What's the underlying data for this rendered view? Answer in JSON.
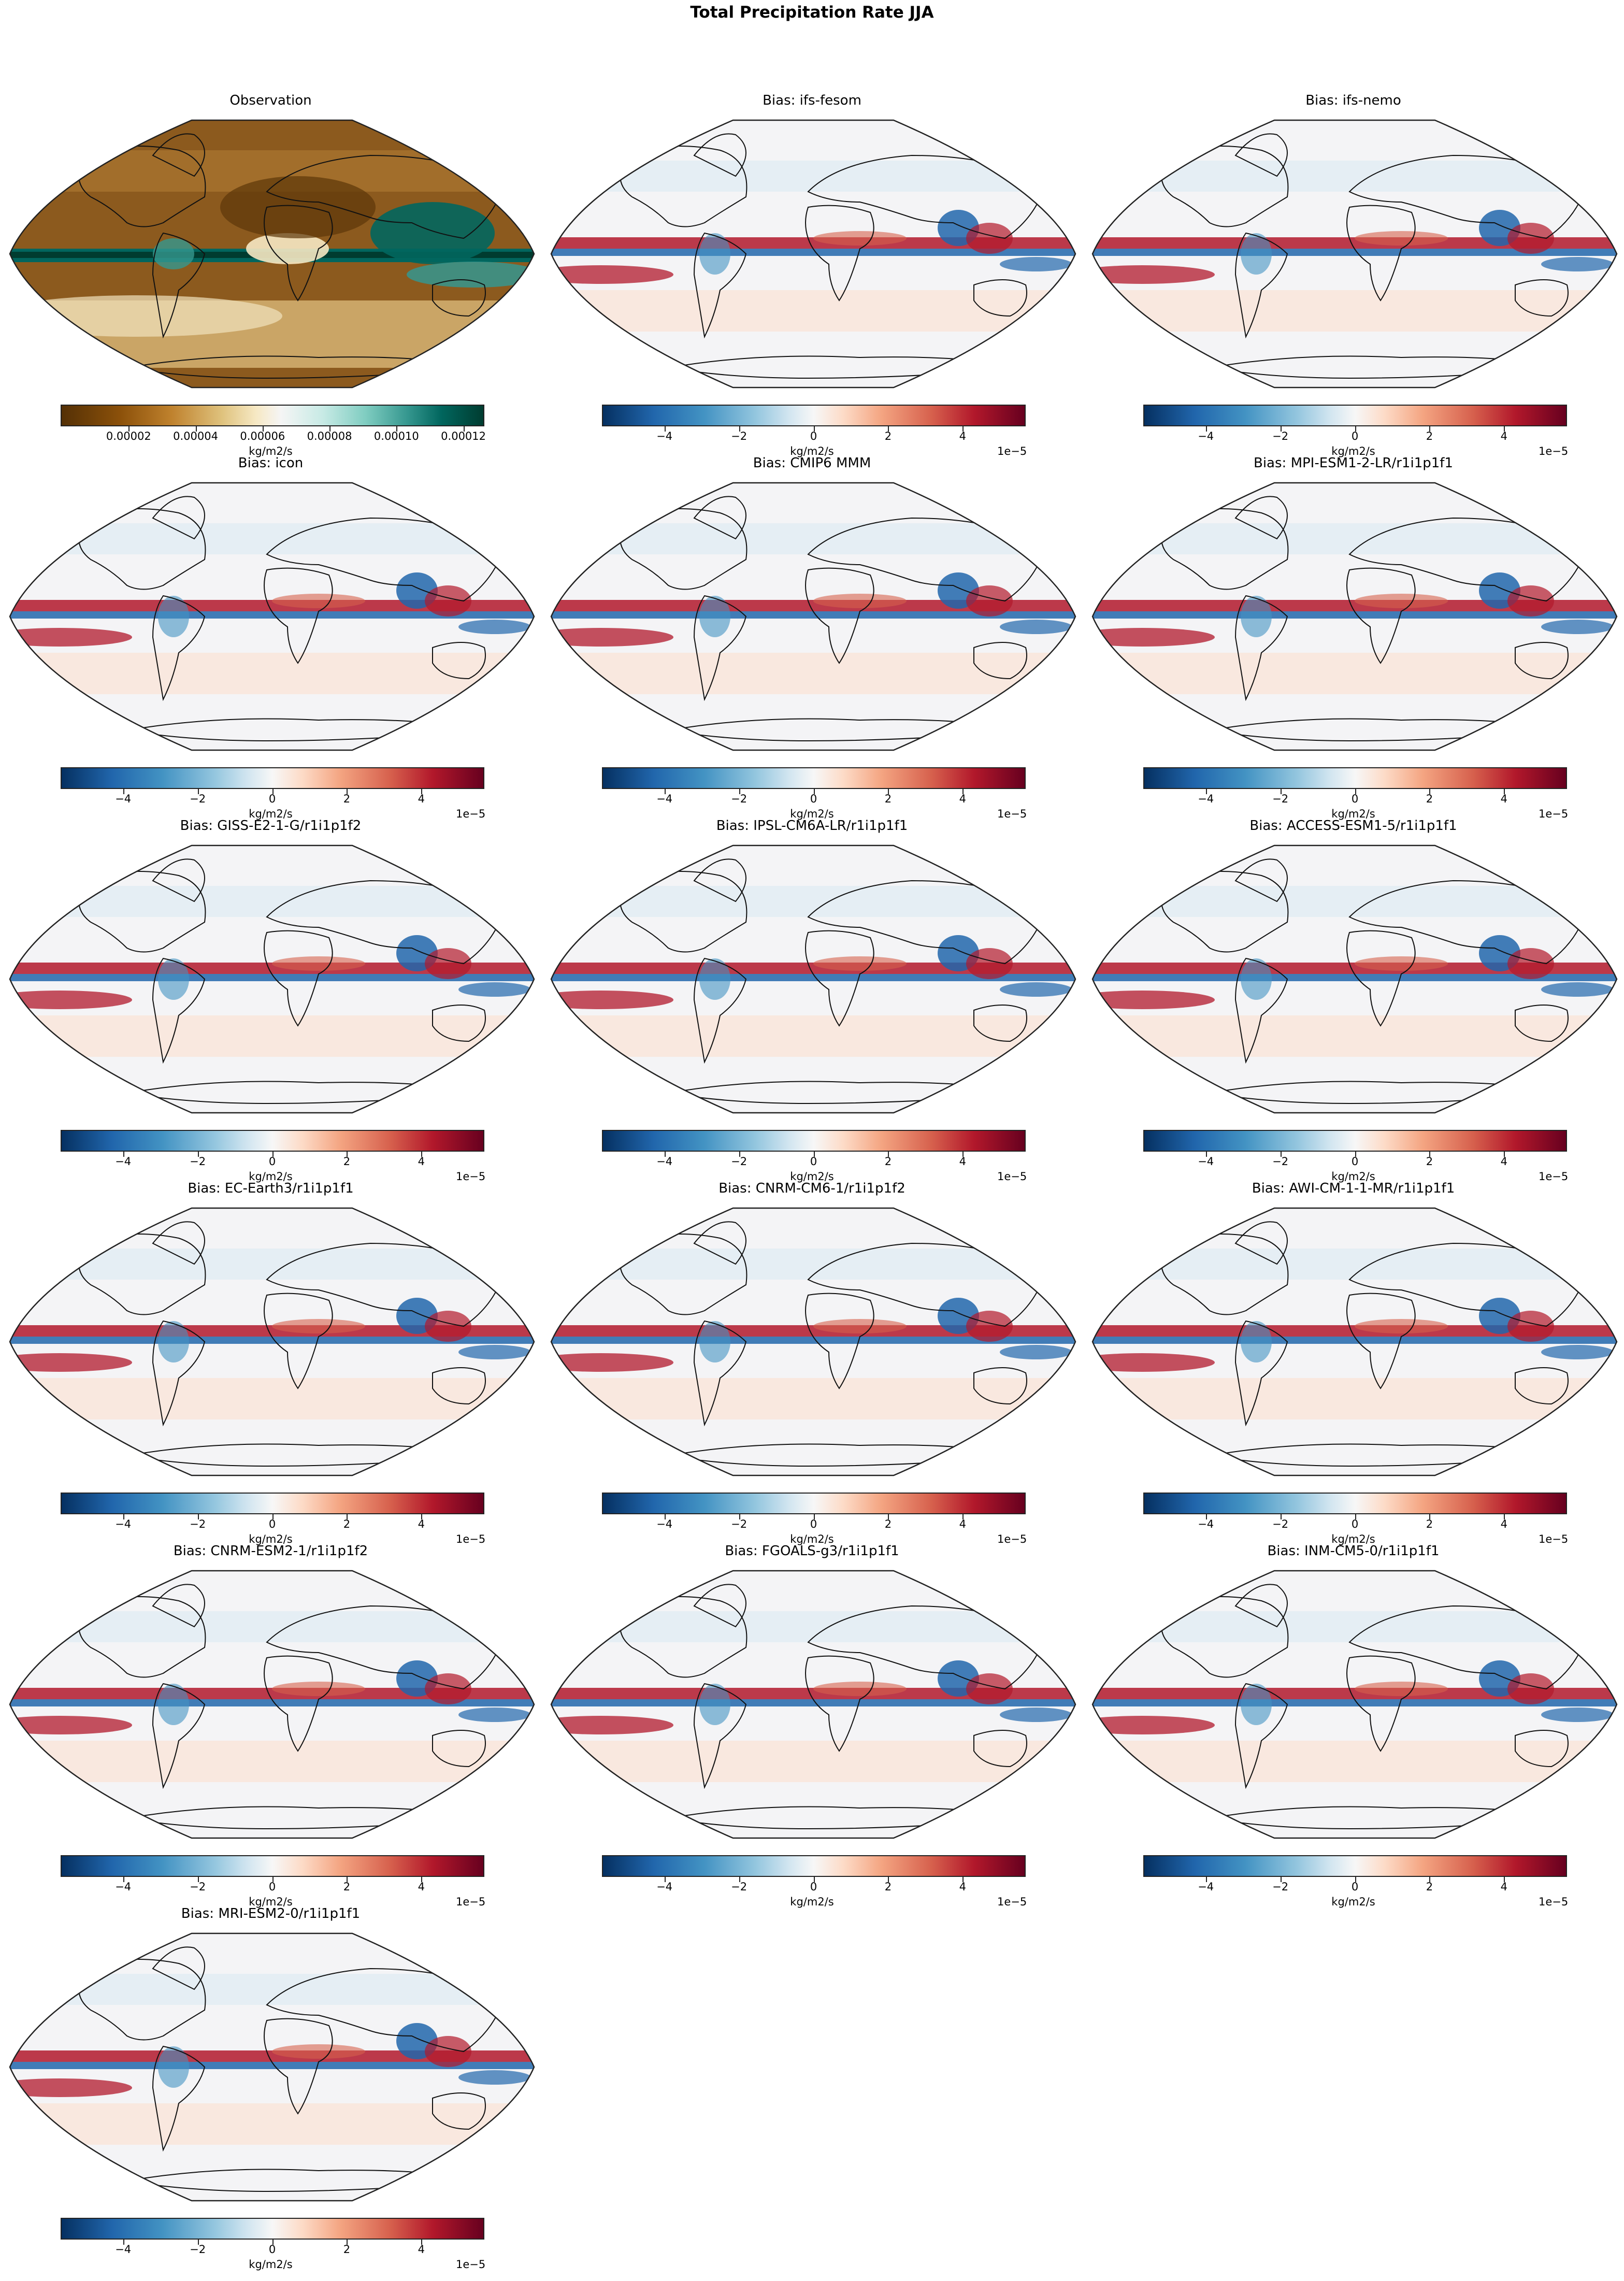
{
  "title": "Total Precipitation Rate JJA",
  "colorbars": {
    "observation": {
      "colormap": "BrBG",
      "ticks": [
        "0.00002",
        "0.00004",
        "0.00006",
        "0.00008",
        "0.00010",
        "0.00012"
      ],
      "tick_positions": [
        0.159,
        0.318,
        0.477,
        0.636,
        0.795,
        0.954
      ],
      "unit": "kg/m2/s",
      "offset": ""
    },
    "bias": {
      "colormap": "RdBu_r",
      "ticks": [
        "−4",
        "−2",
        "0",
        "2",
        "4"
      ],
      "tick_positions": [
        0.146,
        0.323,
        0.5,
        0.677,
        0.854
      ],
      "unit": "kg/m2/s",
      "offset": "1e−5"
    }
  },
  "panels": [
    {
      "title": "Observation",
      "kind": "obs"
    },
    {
      "title": "Bias: ifs-fesom",
      "kind": "bias"
    },
    {
      "title": "Bias: ifs-nemo",
      "kind": "bias"
    },
    {
      "title": "Bias: icon",
      "kind": "bias"
    },
    {
      "title": "Bias: CMIP6 MMM",
      "kind": "bias"
    },
    {
      "title": "Bias: MPI-ESM1-2-LR/r1i1p1f1",
      "kind": "bias"
    },
    {
      "title": "Bias: GISS-E2-1-G/r1i1p1f2",
      "kind": "bias"
    },
    {
      "title": "Bias: IPSL-CM6A-LR/r1i1p1f1",
      "kind": "bias"
    },
    {
      "title": "Bias: ACCESS-ESM1-5/r1i1p1f1",
      "kind": "bias"
    },
    {
      "title": "Bias: EC-Earth3/r1i1p1f1",
      "kind": "bias"
    },
    {
      "title": "Bias: CNRM-CM6-1/r1i1p1f2",
      "kind": "bias"
    },
    {
      "title": "Bias: AWI-CM-1-1-MR/r1i1p1f1",
      "kind": "bias"
    },
    {
      "title": "Bias: CNRM-ESM2-1/r1i1p1f2",
      "kind": "bias"
    },
    {
      "title": "Bias: FGOALS-g3/r1i1p1f1",
      "kind": "bias"
    },
    {
      "title": "Bias: INM-CM5-0/r1i1p1f1",
      "kind": "bias"
    },
    {
      "title": "Bias: MRI-ESM2-0/r1i1p1f1",
      "kind": "bias"
    }
  ],
  "chart_data": {
    "type": "heatmap",
    "title": "Total Precipitation Rate JJA",
    "projection": "Robinson (global map)",
    "layout": {
      "rows": 6,
      "cols": 3,
      "n_panels": 16
    },
    "panels": [
      {
        "title": "Observation",
        "variable": "precipitation rate",
        "unit": "kg/m2/s",
        "colormap": "BrBG",
        "range": [
          0,
          0.000127
        ],
        "ticks": [
          2e-05,
          4e-05,
          6e-05,
          8e-05,
          0.0001,
          0.00012
        ]
      },
      {
        "title": "Bias: ifs-fesom",
        "unit": "kg/m2/s",
        "colormap": "RdBu_r",
        "range": [
          -5.6e-05,
          5.6e-05
        ],
        "ticks": [
          -4,
          -2,
          0,
          2,
          4
        ],
        "tick_scale": "1e-5"
      },
      {
        "title": "Bias: ifs-nemo",
        "unit": "kg/m2/s",
        "colormap": "RdBu_r",
        "range": [
          -5.6e-05,
          5.6e-05
        ],
        "ticks": [
          -4,
          -2,
          0,
          2,
          4
        ],
        "tick_scale": "1e-5"
      },
      {
        "title": "Bias: icon",
        "unit": "kg/m2/s",
        "colormap": "RdBu_r",
        "range": [
          -5.6e-05,
          5.6e-05
        ],
        "ticks": [
          -4,
          -2,
          0,
          2,
          4
        ],
        "tick_scale": "1e-5"
      },
      {
        "title": "Bias: CMIP6 MMM",
        "unit": "kg/m2/s",
        "colormap": "RdBu_r",
        "range": [
          -5.6e-05,
          5.6e-05
        ],
        "ticks": [
          -4,
          -2,
          0,
          2,
          4
        ],
        "tick_scale": "1e-5"
      },
      {
        "title": "Bias: MPI-ESM1-2-LR/r1i1p1f1",
        "unit": "kg/m2/s",
        "colormap": "RdBu_r",
        "range": [
          -5.6e-05,
          5.6e-05
        ],
        "ticks": [
          -4,
          -2,
          0,
          2,
          4
        ],
        "tick_scale": "1e-5"
      },
      {
        "title": "Bias: GISS-E2-1-G/r1i1p1f2",
        "unit": "kg/m2/s",
        "colormap": "RdBu_r",
        "range": [
          -5.6e-05,
          5.6e-05
        ],
        "ticks": [
          -4,
          -2,
          0,
          2,
          4
        ],
        "tick_scale": "1e-5"
      },
      {
        "title": "Bias: IPSL-CM6A-LR/r1i1p1f1",
        "unit": "kg/m2/s",
        "colormap": "RdBu_r",
        "range": [
          -5.6e-05,
          5.6e-05
        ],
        "ticks": [
          -4,
          -2,
          0,
          2,
          4
        ],
        "tick_scale": "1e-5"
      },
      {
        "title": "Bias: ACCESS-ESM1-5/r1i1p1f1",
        "unit": "kg/m2/s",
        "colormap": "RdBu_r",
        "range": [
          -5.6e-05,
          5.6e-05
        ],
        "ticks": [
          -4,
          -2,
          0,
          2,
          4
        ],
        "tick_scale": "1e-5"
      },
      {
        "title": "Bias: EC-Earth3/r1i1p1f1",
        "unit": "kg/m2/s",
        "colormap": "RdBu_r",
        "range": [
          -5.6e-05,
          5.6e-05
        ],
        "ticks": [
          -4,
          -2,
          0,
          2,
          4
        ],
        "tick_scale": "1e-5"
      },
      {
        "title": "Bias: CNRM-CM6-1/r1i1p1f2",
        "unit": "kg/m2/s",
        "colormap": "RdBu_r",
        "range": [
          -5.6e-05,
          5.6e-05
        ],
        "ticks": [
          -4,
          -2,
          0,
          2,
          4
        ],
        "tick_scale": "1e-5"
      },
      {
        "title": "Bias: AWI-CM-1-1-MR/r1i1p1f1",
        "unit": "kg/m2/s",
        "colormap": "RdBu_r",
        "range": [
          -5.6e-05,
          5.6e-05
        ],
        "ticks": [
          -4,
          -2,
          0,
          2,
          4
        ],
        "tick_scale": "1e-5"
      },
      {
        "title": "Bias: CNRM-ESM2-1/r1i1p1f2",
        "unit": "kg/m2/s",
        "colormap": "RdBu_r",
        "range": [
          -5.6e-05,
          5.6e-05
        ],
        "ticks": [
          -4,
          -2,
          0,
          2,
          4
        ],
        "tick_scale": "1e-5"
      },
      {
        "title": "Bias: FGOALS-g3/r1i1p1f1",
        "unit": "kg/m2/s",
        "colormap": "RdBu_r",
        "range": [
          -5.6e-05,
          5.6e-05
        ],
        "ticks": [
          -4,
          -2,
          0,
          2,
          4
        ],
        "tick_scale": "1e-5"
      },
      {
        "title": "Bias: INM-CM5-0/r1i1p1f1",
        "unit": "kg/m2/s",
        "colormap": "RdBu_r",
        "range": [
          -5.6e-05,
          5.6e-05
        ],
        "ticks": [
          -4,
          -2,
          0,
          2,
          4
        ],
        "tick_scale": "1e-5"
      },
      {
        "title": "Bias: MRI-ESM2-0/r1i1p1f1",
        "unit": "kg/m2/s",
        "colormap": "RdBu_r",
        "range": [
          -5.6e-05,
          5.6e-05
        ],
        "ticks": [
          -4,
          -2,
          0,
          2,
          4
        ],
        "tick_scale": "1e-5"
      }
    ]
  }
}
